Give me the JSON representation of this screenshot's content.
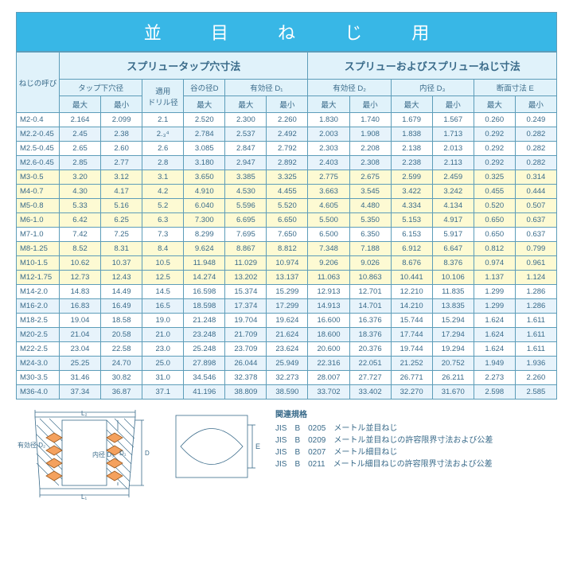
{
  "title": "並 目 ね じ 用",
  "colors": {
    "title_bg": "#38b7e6",
    "title_fg": "#ffffff",
    "border": "#5d9db9",
    "head_bg": "#e0f2fa",
    "row_white": "#ffffff",
    "row_blue": "#e7f3fb",
    "row_yellow": "#fdfad3",
    "text": "#3a6b8a"
  },
  "fontsize": {
    "title": 22,
    "section": 13,
    "cell": 9.5
  },
  "headers": {
    "nezi": "ねじの呼び",
    "left_section": "スプリュータップ穴寸法",
    "right_section": "スプリューおよびスプリューねじ寸法",
    "tap_hole": "タップ下穴径",
    "drill": "適用\nドリル径",
    "valley": "谷の径D",
    "eff_d1": "有効径 D₁",
    "eff_d2": "有効径 D₂",
    "inner_d3": "内径 D₃",
    "section_e": "断面寸法 E",
    "max": "最大",
    "min": "最小"
  },
  "rows": [
    {
      "c": "white",
      "name": "M2-0.4",
      "v": [
        "2.164",
        "2.099",
        "2.1",
        "2.520",
        "2.300",
        "2.260",
        "1.830",
        "1.740",
        "1.679",
        "1.567",
        "0.260",
        "0.249"
      ]
    },
    {
      "c": "blue",
      "name": "M2.2-0.45",
      "v": [
        "2.45",
        "2.38",
        "2.₃⁴",
        "2.784",
        "2.537",
        "2.492",
        "2.003",
        "1.908",
        "1.838",
        "1.713",
        "0.292",
        "0.282"
      ]
    },
    {
      "c": "white",
      "name": "M2.5-0.45",
      "v": [
        "2.65",
        "2.60",
        "2.6",
        "3.085",
        "2.847",
        "2.792",
        "2.303",
        "2.208",
        "2.138",
        "2.013",
        "0.292",
        "0.282"
      ]
    },
    {
      "c": "blue",
      "name": "M2.6-0.45",
      "v": [
        "2.85",
        "2.77",
        "2.8",
        "3.180",
        "2.947",
        "2.892",
        "2.403",
        "2.308",
        "2.238",
        "2.113",
        "0.292",
        "0.282"
      ]
    },
    {
      "c": "yellow",
      "name": "M3-0.5",
      "v": [
        "3.20",
        "3.12",
        "3.1",
        "3.650",
        "3.385",
        "3.325",
        "2.775",
        "2.675",
        "2.599",
        "2.459",
        "0.325",
        "0.314"
      ]
    },
    {
      "c": "yellow",
      "name": "M4-0.7",
      "v": [
        "4.30",
        "4.17",
        "4.2",
        "4.910",
        "4.530",
        "4.455",
        "3.663",
        "3.545",
        "3.422",
        "3.242",
        "0.455",
        "0.444"
      ]
    },
    {
      "c": "yellow",
      "name": "M5-0.8",
      "v": [
        "5.33",
        "5.16",
        "5.2",
        "6.040",
        "5.596",
        "5.520",
        "4.605",
        "4.480",
        "4.334",
        "4.134",
        "0.520",
        "0.507"
      ]
    },
    {
      "c": "yellow",
      "name": "M6-1.0",
      "v": [
        "6.42",
        "6.25",
        "6.3",
        "7.300",
        "6.695",
        "6.650",
        "5.500",
        "5.350",
        "5.153",
        "4.917",
        "0.650",
        "0.637"
      ]
    },
    {
      "c": "white",
      "name": "M7-1.0",
      "v": [
        "7.42",
        "7.25",
        "7.3",
        "8.299",
        "7.695",
        "7.650",
        "6.500",
        "6.350",
        "6.153",
        "5.917",
        "0.650",
        "0.637"
      ]
    },
    {
      "c": "yellow",
      "name": "M8-1.25",
      "v": [
        "8.52",
        "8.31",
        "8.4",
        "9.624",
        "8.867",
        "8.812",
        "7.348",
        "7.188",
        "6.912",
        "6.647",
        "0.812",
        "0.799"
      ]
    },
    {
      "c": "yellow",
      "name": "M10-1.5",
      "v": [
        "10.62",
        "10.37",
        "10.5",
        "11.948",
        "11.029",
        "10.974",
        "9.206",
        "9.026",
        "8.676",
        "8.376",
        "0.974",
        "0.961"
      ]
    },
    {
      "c": "yellow",
      "name": "M12-1.75",
      "v": [
        "12.73",
        "12.43",
        "12.5",
        "14.274",
        "13.202",
        "13.137",
        "11.063",
        "10.863",
        "10.441",
        "10.106",
        "1.137",
        "1.124"
      ]
    },
    {
      "c": "white",
      "name": "M14-2.0",
      "v": [
        "14.83",
        "14.49",
        "14.5",
        "16.598",
        "15.374",
        "15.299",
        "12.913",
        "12.701",
        "12.210",
        "11.835",
        "1.299",
        "1.286"
      ]
    },
    {
      "c": "blue",
      "name": "M16-2.0",
      "v": [
        "16.83",
        "16.49",
        "16.5",
        "18.598",
        "17.374",
        "17.299",
        "14.913",
        "14.701",
        "14.210",
        "13.835",
        "1.299",
        "1.286"
      ]
    },
    {
      "c": "white",
      "name": "M18-2.5",
      "v": [
        "19.04",
        "18.58",
        "19.0",
        "21.248",
        "19.704",
        "19.624",
        "16.600",
        "16.376",
        "15.744",
        "15.294",
        "1.624",
        "1.611"
      ]
    },
    {
      "c": "blue",
      "name": "M20-2.5",
      "v": [
        "21.04",
        "20.58",
        "21.0",
        "23.248",
        "21.709",
        "21.624",
        "18.600",
        "18.376",
        "17.744",
        "17.294",
        "1.624",
        "1.611"
      ]
    },
    {
      "c": "white",
      "name": "M22-2.5",
      "v": [
        "23.04",
        "22.58",
        "23.0",
        "25.248",
        "23.709",
        "23.624",
        "20.600",
        "20.376",
        "19.744",
        "19.294",
        "1.624",
        "1.611"
      ]
    },
    {
      "c": "blue",
      "name": "M24-3.0",
      "v": [
        "25.25",
        "24.70",
        "25.0",
        "27.898",
        "26.044",
        "25.949",
        "22.316",
        "22.051",
        "21.252",
        "20.752",
        "1.949",
        "1.936"
      ]
    },
    {
      "c": "white",
      "name": "M30-3.5",
      "v": [
        "31.46",
        "30.82",
        "31.0",
        "34.546",
        "32.378",
        "32.273",
        "28.007",
        "27.727",
        "26.771",
        "26.211",
        "2.273",
        "2.260"
      ]
    },
    {
      "c": "blue",
      "name": "M36-4.0",
      "v": [
        "37.34",
        "36.87",
        "37.1",
        "41.196",
        "38.809",
        "38.590",
        "33.702",
        "33.402",
        "32.270",
        "31.670",
        "2.598",
        "2.585"
      ]
    }
  ],
  "diagram": {
    "labels": {
      "L1": "L₁",
      "L2": "L₂",
      "D": "D",
      "D1": "D₁",
      "D2_label": "有効径\nD₂",
      "D3_label": "内径\nD₃",
      "E": "E"
    }
  },
  "standards": {
    "heading": "関連規格",
    "lines": [
      "JIS　B　0205　メートル並目ねじ",
      "JIS　B　0209　メートル並目ねじの許容限界寸法および公差",
      "JIS　B　0207　メートル細目ねじ",
      "JIS　B　0211　メートル細目ねじの許容限界寸法および公差"
    ]
  }
}
